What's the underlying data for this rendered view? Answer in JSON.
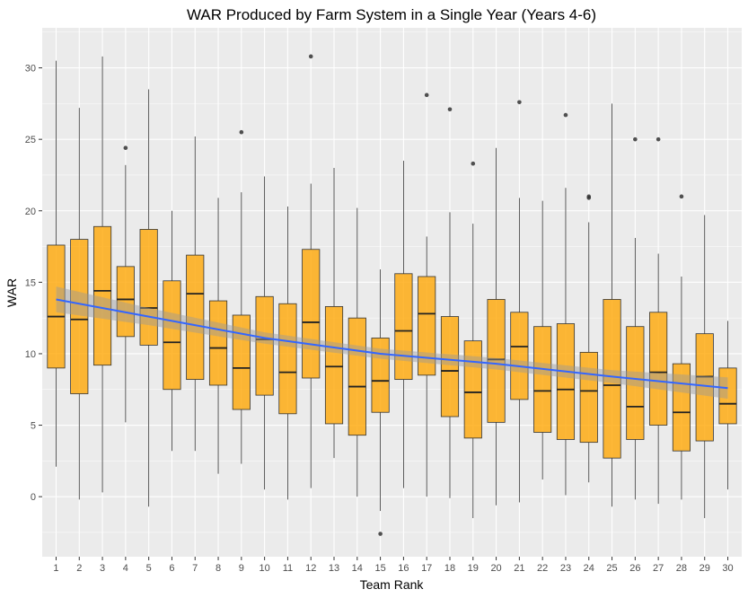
{
  "chart_data": {
    "type": "box",
    "title": "WAR Produced by Farm System in a Single Year (Years 4-6)",
    "xlabel": "Team Rank",
    "ylabel": "WAR",
    "ylim": [
      -4.2,
      32.8
    ],
    "y_ticks": [
      0,
      5,
      10,
      15,
      20,
      25,
      30
    ],
    "categories": [
      "1",
      "2",
      "3",
      "4",
      "5",
      "6",
      "7",
      "8",
      "9",
      "10",
      "11",
      "12",
      "13",
      "14",
      "15",
      "16",
      "17",
      "18",
      "19",
      "20",
      "21",
      "22",
      "23",
      "24",
      "25",
      "26",
      "27",
      "28",
      "29",
      "30"
    ],
    "boxes": [
      {
        "rank": "1",
        "min": 2.1,
        "q1": 9.0,
        "median": 12.6,
        "q3": 17.6,
        "max": 30.5,
        "outliers": []
      },
      {
        "rank": "2",
        "min": -0.2,
        "q1": 7.2,
        "median": 12.4,
        "q3": 18.0,
        "max": 27.2,
        "outliers": []
      },
      {
        "rank": "3",
        "min": 0.3,
        "q1": 9.2,
        "median": 14.4,
        "q3": 18.9,
        "max": 30.8,
        "outliers": []
      },
      {
        "rank": "4",
        "min": 5.2,
        "q1": 11.2,
        "median": 13.8,
        "q3": 16.1,
        "max": 23.2,
        "outliers": [
          24.4
        ]
      },
      {
        "rank": "5",
        "min": -0.7,
        "q1": 10.6,
        "median": 13.2,
        "q3": 18.7,
        "max": 28.5,
        "outliers": []
      },
      {
        "rank": "6",
        "min": 3.2,
        "q1": 7.5,
        "median": 10.8,
        "q3": 15.1,
        "max": 20.0,
        "outliers": []
      },
      {
        "rank": "7",
        "min": 3.2,
        "q1": 8.2,
        "median": 14.2,
        "q3": 16.9,
        "max": 25.2,
        "outliers": []
      },
      {
        "rank": "8",
        "min": 1.6,
        "q1": 7.8,
        "median": 10.4,
        "q3": 13.7,
        "max": 20.9,
        "outliers": []
      },
      {
        "rank": "9",
        "min": 2.3,
        "q1": 6.1,
        "median": 9.0,
        "q3": 12.7,
        "max": 21.3,
        "outliers": [
          25.5
        ]
      },
      {
        "rank": "10",
        "min": 0.5,
        "q1": 7.1,
        "median": 11.0,
        "q3": 14.0,
        "max": 22.4,
        "outliers": []
      },
      {
        "rank": "11",
        "min": -0.2,
        "q1": 5.8,
        "median": 8.7,
        "q3": 13.5,
        "max": 20.3,
        "outliers": []
      },
      {
        "rank": "12",
        "min": 0.6,
        "q1": 8.3,
        "median": 12.2,
        "q3": 17.3,
        "max": 21.9,
        "outliers": [
          30.8
        ]
      },
      {
        "rank": "13",
        "min": 2.7,
        "q1": 5.1,
        "median": 9.1,
        "q3": 13.3,
        "max": 23.0,
        "outliers": []
      },
      {
        "rank": "14",
        "min": 0.0,
        "q1": 4.3,
        "median": 7.7,
        "q3": 12.5,
        "max": 20.2,
        "outliers": []
      },
      {
        "rank": "15",
        "min": -1.0,
        "q1": 5.9,
        "median": 8.1,
        "q3": 11.1,
        "max": 15.9,
        "outliers": [
          -2.6
        ]
      },
      {
        "rank": "16",
        "min": 0.6,
        "q1": 8.2,
        "median": 11.6,
        "q3": 15.6,
        "max": 23.5,
        "outliers": []
      },
      {
        "rank": "17",
        "min": 0.0,
        "q1": 8.5,
        "median": 12.8,
        "q3": 15.4,
        "max": 18.2,
        "outliers": [
          28.1
        ]
      },
      {
        "rank": "18",
        "min": -0.1,
        "q1": 5.6,
        "median": 8.8,
        "q3": 12.6,
        "max": 19.9,
        "outliers": [
          27.1
        ]
      },
      {
        "rank": "19",
        "min": -1.5,
        "q1": 4.1,
        "median": 7.3,
        "q3": 10.9,
        "max": 19.1,
        "outliers": [
          23.3
        ]
      },
      {
        "rank": "20",
        "min": -0.6,
        "q1": 5.2,
        "median": 9.6,
        "q3": 13.8,
        "max": 24.4,
        "outliers": []
      },
      {
        "rank": "21",
        "min": -0.4,
        "q1": 6.8,
        "median": 10.5,
        "q3": 12.9,
        "max": 20.9,
        "outliers": [
          27.6
        ]
      },
      {
        "rank": "22",
        "min": 1.2,
        "q1": 4.5,
        "median": 7.4,
        "q3": 11.9,
        "max": 20.7,
        "outliers": []
      },
      {
        "rank": "23",
        "min": 0.1,
        "q1": 4.0,
        "median": 7.5,
        "q3": 12.1,
        "max": 21.6,
        "outliers": [
          26.7
        ]
      },
      {
        "rank": "24",
        "min": 1.0,
        "q1": 3.8,
        "median": 7.4,
        "q3": 10.1,
        "max": 19.2,
        "outliers": [
          20.9,
          21.0
        ]
      },
      {
        "rank": "25",
        "min": -0.7,
        "q1": 2.7,
        "median": 7.8,
        "q3": 13.8,
        "max": 27.5,
        "outliers": []
      },
      {
        "rank": "26",
        "min": -0.2,
        "q1": 4.0,
        "median": 6.3,
        "q3": 11.9,
        "max": 18.1,
        "outliers": [
          25.0
        ]
      },
      {
        "rank": "27",
        "min": -0.5,
        "q1": 5.0,
        "median": 8.7,
        "q3": 12.9,
        "max": 17.0,
        "outliers": [
          25.0
        ]
      },
      {
        "rank": "28",
        "min": -0.2,
        "q1": 3.2,
        "median": 5.9,
        "q3": 9.3,
        "max": 15.4,
        "outliers": [
          21.0
        ]
      },
      {
        "rank": "29",
        "min": -1.5,
        "q1": 3.9,
        "median": 8.4,
        "q3": 11.4,
        "max": 19.7,
        "outliers": []
      },
      {
        "rank": "30",
        "min": 0.5,
        "q1": 5.1,
        "median": 6.5,
        "q3": 9.0,
        "max": 12.3,
        "outliers": []
      }
    ],
    "trend": {
      "x": [
        1,
        5,
        10,
        15,
        20,
        25,
        30
      ],
      "y": [
        13.8,
        12.6,
        11.1,
        10.0,
        9.3,
        8.4,
        7.6
      ],
      "band_halfwidth": [
        0.9,
        0.6,
        0.4,
        0.35,
        0.4,
        0.45,
        0.75
      ]
    },
    "colors": {
      "box_fill": "#FFA500",
      "box_stroke": "#333333",
      "trend_line": "#3366FF",
      "band": "#999999",
      "panel_bg": "#EBEBEB",
      "grid": "#FFFFFF"
    }
  }
}
